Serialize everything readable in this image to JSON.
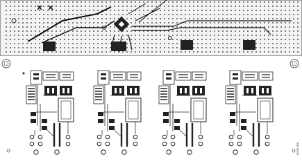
{
  "figure_id": "13096-008"
}
